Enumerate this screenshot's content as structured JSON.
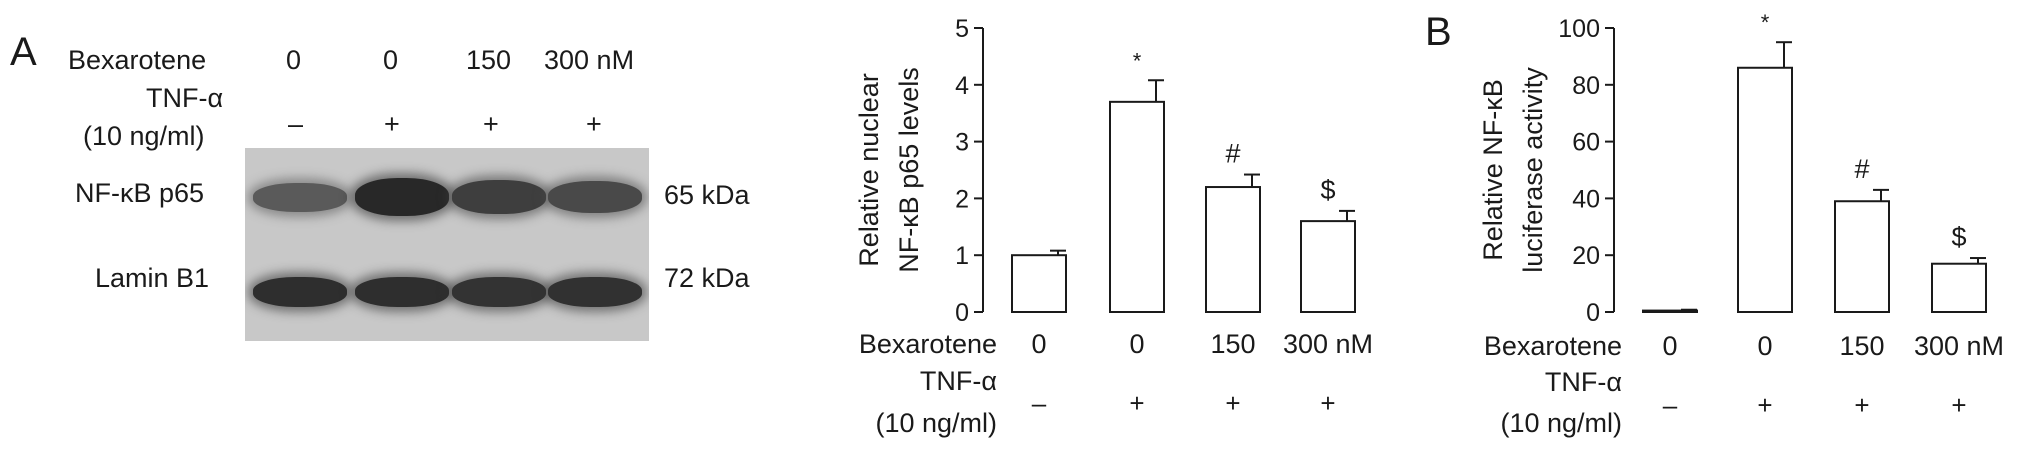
{
  "panel_a": {
    "letter": "A",
    "blot": {
      "bexarotene_label": "Bexarotene",
      "bexarotene_doses": [
        "0",
        "0",
        "150",
        "300 nM"
      ],
      "tnf_label": "TNF-α",
      "tnf_conc": "(10 ng/ml)",
      "tnf_signs": [
        "–",
        "+",
        "+",
        "+"
      ],
      "rows": [
        {
          "label": "NF-κB p65",
          "size": "65 kDa",
          "intensity": [
            0.55,
            1.0,
            0.8,
            0.7
          ]
        },
        {
          "label": "Lamin B1",
          "size": "72 kDa",
          "intensity": [
            0.95,
            0.95,
            0.9,
            0.92
          ]
        }
      ]
    }
  },
  "panel_b": {
    "letter": "B"
  },
  "chart_data": [
    {
      "type": "bar",
      "ylabel_line1": "Relative nuclear",
      "ylabel_line2": "NF-κB p65 levels",
      "ylim": [
        0,
        5
      ],
      "yticks": [
        "0",
        "1",
        "2",
        "3",
        "4",
        "5"
      ],
      "xlabel_row1_title": "Bexarotene",
      "categories": [
        "0",
        "0",
        "150",
        "300 nM"
      ],
      "xlabel_row2_title": "TNF-α",
      "xlabel_row2_sub": "(10 ng/ml)",
      "signs": [
        "–",
        "+",
        "+",
        "+"
      ],
      "values": [
        1.0,
        3.7,
        2.2,
        1.6
      ],
      "errors": [
        0.08,
        0.38,
        0.22,
        0.18
      ],
      "annotations": [
        "",
        "*",
        "#",
        "$"
      ]
    },
    {
      "type": "bar",
      "ylabel_line1": "Relative NF-κB",
      "ylabel_line2": "luciferase activity",
      "ylim": [
        0,
        100
      ],
      "yticks": [
        "0",
        "20",
        "40",
        "60",
        "80",
        "100"
      ],
      "xlabel_row1_title": "Bexarotene",
      "categories": [
        "0",
        "0",
        "150",
        "300 nM"
      ],
      "xlabel_row2_title": "TNF-α",
      "xlabel_row2_sub": "(10 ng/ml)",
      "signs": [
        "–",
        "+",
        "+",
        "+"
      ],
      "values": [
        0.5,
        86,
        39,
        17
      ],
      "errors": [
        0.3,
        9,
        4,
        2
      ],
      "annotations": [
        "",
        "*",
        "#",
        "$"
      ]
    }
  ]
}
